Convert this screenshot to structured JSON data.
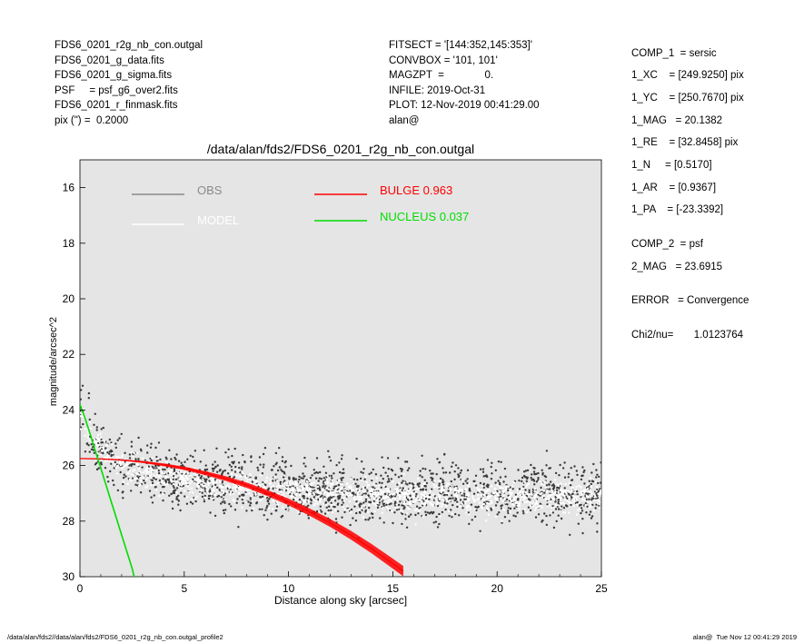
{
  "header_left": [
    "FDS6_0201_r2g_nb_con.outgal",
    "FDS6_0201_g_data.fits",
    "FDS6_0201_g_sigma.fits",
    "PSF     = psf_g6_over2.fits",
    "FDS6_0201_r_finmask.fits",
    "pix (\") =  0.2000"
  ],
  "header_mid": [
    "FITSECT = '[144:352,145:353]'",
    "CONVBOX = '101, 101'",
    "MAGZPT  =              0.",
    "INFILE: 2019-Oct-31",
    "PLOT: 12-Nov-2019 00:41:29.00",
    "alan@"
  ],
  "params": [
    "COMP_1  = sersic",
    "1_XC    = [249.9250] pix",
    "1_YC    = [250.7670] pix",
    "1_MAG   = 20.1382",
    "1_RE    = [32.8458] pix",
    "1_N     = [0.5170]",
    "1_AR    = [0.9367]",
    "1_PA    = [-23.3392]",
    "COMP_2  = psf",
    "2_MAG   = 23.6915",
    "ERROR   = Convergence",
    "Chi2/nu=       1.0123764"
  ],
  "footer_left": "/data/alan/fds2//data/alan/fds2/FDS6_0201_r2g_nb_con.outgal_profile2",
  "footer_right": "alan@  Tue Nov 12 00:41:29 2019",
  "chart_data": {
    "type": "scatter",
    "title": "/data/alan/fds2/FDS6_0201_r2g_nb_con.outgal",
    "xlabel": "Distance along sky [arcsec]",
    "ylabel": "magnitude/arcsec^2",
    "xlim": [
      0,
      25
    ],
    "ylim": [
      30,
      15
    ],
    "y_inverted": true,
    "xticks": [
      0,
      5,
      10,
      15,
      20,
      25
    ],
    "yticks": [
      16,
      18,
      20,
      22,
      24,
      26,
      28,
      30
    ],
    "background": "#e5e5e5",
    "grid": false,
    "legend": [
      {
        "label": "OBS",
        "color": "#8a8a8a"
      },
      {
        "label": "MODEL",
        "color": "#ffffff"
      },
      {
        "label": "BULGE  0.963",
        "color": "#ff0000"
      },
      {
        "label": "NUCLEUS  0.037",
        "color": "#00dd00"
      }
    ],
    "series": [
      {
        "name": "OBS",
        "color": "#3a3a3a",
        "x": [
          0.1,
          0.5,
          1,
          1.5,
          2,
          3,
          4,
          5,
          6,
          7,
          8,
          9,
          10,
          11,
          12,
          13,
          14,
          15,
          16,
          17,
          18,
          19,
          20,
          21,
          22,
          23,
          24,
          25
        ],
        "y": [
          24.2,
          25.1,
          25.6,
          25.8,
          26.0,
          26.2,
          26.4,
          26.5,
          26.6,
          26.7,
          26.7,
          26.8,
          26.8,
          26.9,
          26.9,
          26.9,
          27.0,
          27.0,
          27.0,
          27.0,
          27.0,
          27.0,
          27.0,
          27.0,
          27.0,
          27.1,
          27.1,
          27.1
        ]
      },
      {
        "name": "MODEL",
        "color": "#ffffff",
        "x": [
          0.1,
          0.5,
          1,
          2,
          3,
          4,
          5,
          6,
          7,
          8,
          9,
          10,
          11,
          12,
          13,
          14,
          15,
          16,
          17,
          18,
          19,
          20,
          21,
          22,
          23,
          24,
          25
        ],
        "y": [
          24.0,
          24.8,
          25.2,
          25.7,
          26.0,
          26.2,
          26.3,
          26.5,
          26.6,
          26.6,
          26.7,
          26.7,
          26.8,
          26.8,
          26.8,
          26.8,
          26.9,
          26.9,
          26.9,
          26.9,
          26.9,
          26.9,
          26.9,
          26.9,
          26.9,
          26.9,
          26.9
        ]
      },
      {
        "name": "BULGE  0.963",
        "color": "#ff0000",
        "x": [
          0,
          1,
          2,
          3,
          4,
          5,
          6,
          7,
          8,
          9,
          10,
          11,
          12,
          13,
          14,
          15,
          15.5
        ],
        "y": [
          25.75,
          25.76,
          25.8,
          25.87,
          25.97,
          26.1,
          26.27,
          26.47,
          26.71,
          26.99,
          27.31,
          27.67,
          28.07,
          28.51,
          29.0,
          29.53,
          29.8
        ]
      },
      {
        "name": "NUCLEUS  0.037",
        "color": "#00dd00",
        "x": [
          0,
          0.25,
          0.5,
          0.75,
          1.0,
          1.25,
          1.5,
          1.75,
          2.0,
          2.25,
          2.5,
          2.6
        ],
        "y": [
          23.8,
          24.3,
          24.9,
          25.5,
          26.1,
          26.7,
          27.3,
          27.9,
          28.5,
          29.1,
          29.7,
          30.0
        ]
      }
    ]
  }
}
